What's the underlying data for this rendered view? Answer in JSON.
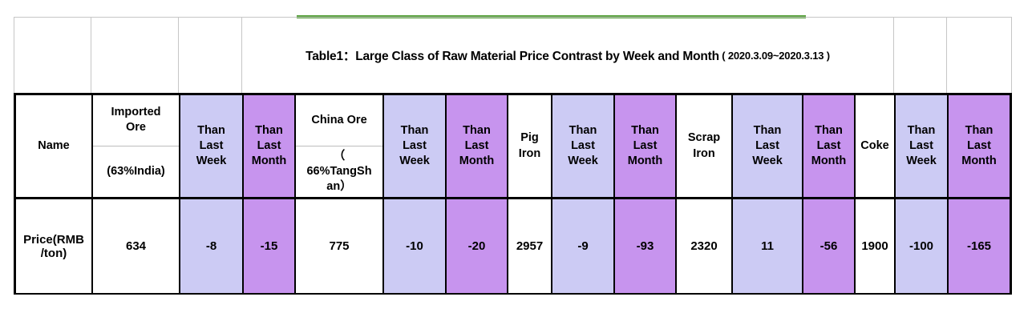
{
  "title": {
    "main": "Table1：Large Class of Raw Material Price Contrast by Week and Month",
    "date": " ( 2020.3.09~2020.3.13 )"
  },
  "colors": {
    "than_last_week_bg": "#cccbf4",
    "than_last_month_bg": "#c794ee",
    "green_rule": "#58a13c",
    "grid_gray": "#c6c6c6",
    "table_border": "#000000"
  },
  "table": {
    "header": [
      {
        "label": "Name"
      },
      {
        "label": "Imported\nOre",
        "sublabel": "(63%India)"
      },
      {
        "label": "Than\nLast\nWeek"
      },
      {
        "label": "Than\nLast\nMonth"
      },
      {
        "label": "China Ore",
        "sublabel": "（\n66%TangSh\nan）"
      },
      {
        "label": "Than\nLast\nWeek"
      },
      {
        "label": "Than\nLast\nMonth"
      },
      {
        "label": "Pig\nIron"
      },
      {
        "label": "Than\nLast\nWeek"
      },
      {
        "label": "Than\nLast\nMonth"
      },
      {
        "label": "Scrap\nIron"
      },
      {
        "label": "Than\nLast\nWeek"
      },
      {
        "label": "Than\nLast\nMonth"
      },
      {
        "label": "Coke"
      },
      {
        "label": "Than\nLast\nWeek"
      },
      {
        "label": "Than\nLast\nMonth"
      }
    ],
    "row": {
      "name": "Price(RMB\n/ton)",
      "values": [
        "634",
        "-8",
        "-15",
        "775",
        "-10",
        "-20",
        "2957",
        "-9",
        "-93",
        "2320",
        "11",
        "-56",
        "1900",
        "-100",
        "-165"
      ]
    }
  },
  "chart_data": {
    "type": "table",
    "title": "Table1：Large Class of Raw Material Price Contrast by Week and Month ( 2020.3.09~2020.3.13 )",
    "columns": [
      "Name",
      "Imported Ore (63%India)",
      "Than Last Week",
      "Than Last Month",
      "China Ore（66%TangShan）",
      "Than Last Week",
      "Than Last Month",
      "Pig Iron",
      "Than Last Week",
      "Than Last Month",
      "Scrap Iron",
      "Than Last Week",
      "Than Last Month",
      "Coke",
      "Than Last Week",
      "Than Last Month"
    ],
    "rows": [
      [
        "Price(RMB/ton)",
        634,
        -8,
        -15,
        775,
        -10,
        -20,
        2957,
        -9,
        -93,
        2320,
        11,
        -56,
        1900,
        -100,
        -165
      ]
    ]
  }
}
